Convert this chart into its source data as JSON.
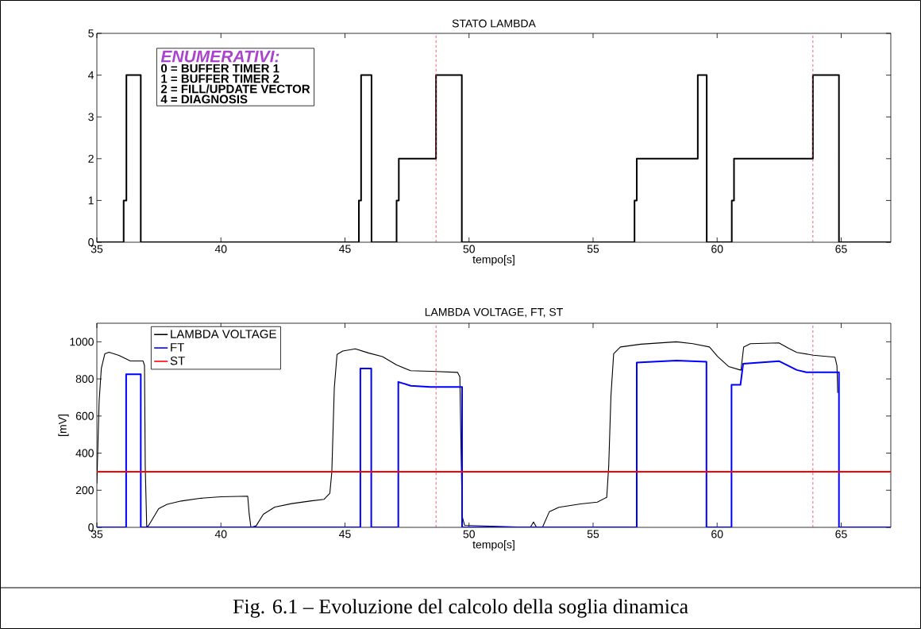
{
  "chart_data": [
    {
      "type": "step",
      "title": "STATO LAMBDA",
      "xlabel": "tempo[s]",
      "xlim": [
        35,
        67
      ],
      "xticks": [
        35,
        40,
        45,
        50,
        55,
        60,
        65
      ],
      "ylim": [
        0,
        5
      ],
      "yticks": [
        0,
        1,
        2,
        3,
        4,
        5
      ],
      "grid": false,
      "legend": false,
      "x": [
        35,
        36.08,
        36.19,
        36.77,
        45.56,
        45.65,
        46.07,
        47.08,
        47.17,
        48.67,
        49.71,
        56.67,
        56.76,
        59.22,
        59.58,
        60.59,
        60.68,
        63.86,
        64.91,
        67
      ],
      "series": [
        {
          "color": "#000000",
          "values": [
            0,
            1,
            4,
            0,
            1,
            4,
            0,
            1,
            2,
            4,
            0,
            1,
            2,
            4,
            0,
            1,
            2,
            4,
            0,
            0
          ]
        }
      ],
      "ref_lines": [
        {
          "axis": "x",
          "value": 48.67,
          "color": "#e8334a",
          "line_style": "dashed"
        },
        {
          "axis": "x",
          "value": 63.86,
          "color": "#e8334a",
          "line_style": "dashed"
        }
      ],
      "annotations": [
        "ENUMERATIVI:",
        "0 = BUFFER TIMER 1",
        "1 = BUFFER TIMER 2",
        "2 = FILL/UPDATE VECTOR",
        "4 = DIAGNOSIS"
      ]
    },
    {
      "type": "line",
      "title": "LAMBDA VOLTAGE, FT, ST",
      "xlabel": "tempo[s]",
      "ylabel": "[mV]",
      "xlim": [
        35,
        67
      ],
      "xticks": [
        35,
        40,
        45,
        50,
        55,
        60,
        65
      ],
      "ylim": [
        0,
        1100
      ],
      "yticks": [
        0,
        200,
        400,
        600,
        800,
        1000
      ],
      "grid": false,
      "legend": "top left",
      "series": [
        {
          "name": "LAMBDA VOLTAGE",
          "color": "#000000",
          "x": [
            35.0,
            35.09,
            35.18,
            35.32,
            35.49,
            35.89,
            36.35,
            36.86,
            36.92,
            36.95,
            37.01,
            37.09,
            37.49,
            37.83,
            38.4,
            39.2,
            40.0,
            41.08,
            41.14,
            41.21,
            41.42,
            41.71,
            42.17,
            42.85,
            43.65,
            44.16,
            44.39,
            44.47,
            44.57,
            44.68,
            44.91,
            45.42,
            45.94,
            46.51,
            47.08,
            47.65,
            48.45,
            49.54,
            49.63,
            49.68,
            49.73,
            49.82,
            52.47,
            52.6,
            52.72,
            52.96,
            53.24,
            53.62,
            54.5,
            55.17,
            55.55,
            55.63,
            55.72,
            55.83,
            56.1,
            56.93,
            58.36,
            59.02,
            59.69,
            60.02,
            60.46,
            60.96,
            61.07,
            61.34,
            62.49,
            62.88,
            63.21,
            63.87,
            64.75,
            64.83,
            64.86
          ],
          "values": [
            237,
            675,
            857,
            935,
            944,
            927,
            897,
            897,
            872,
            328,
            0,
            11,
            101,
            124,
            142,
            157,
            165,
            168,
            71,
            0,
            8,
            71,
            109,
            128,
            143,
            151,
            184,
            298,
            751,
            932,
            950,
            962,
            940,
            920,
            875,
            844,
            841,
            835,
            811,
            403,
            56,
            11,
            0,
            29,
            0,
            0,
            85,
            108,
            126,
            136,
            162,
            330,
            709,
            936,
            972,
            987,
            1000,
            990,
            972,
            921,
            867,
            847,
            972,
            990,
            994,
            965,
            943,
            928,
            917,
            870,
            724
          ]
        },
        {
          "name": "FT",
          "color": "#0000ff",
          "x": [
            35,
            36.18,
            36.18,
            36.77,
            36.77,
            45.62,
            45.62,
            46.06,
            46.06,
            47.15,
            47.15,
            47.65,
            48.45,
            49.72,
            49.72,
            56.76,
            56.76,
            58.36,
            59.57,
            59.57,
            60.58,
            60.58,
            60.94,
            61.05,
            62.49,
            63.21,
            63.6,
            64.91,
            64.91,
            67
          ],
          "values": [
            0,
            0,
            825,
            825,
            0,
            0,
            856,
            856,
            0,
            0,
            784,
            763,
            757,
            757,
            0,
            0,
            888,
            899,
            892,
            0,
            0,
            768,
            768,
            882,
            896,
            848,
            836,
            836,
            0,
            0
          ]
        },
        {
          "name": "ST",
          "color": "#ff0000",
          "x": [
            35,
            67
          ],
          "values": [
            300,
            300
          ]
        }
      ],
      "ref_lines": [
        {
          "axis": "x",
          "value": 48.67,
          "color": "#e8334a",
          "line_style": "dashed"
        },
        {
          "axis": "x",
          "value": 63.86,
          "color": "#e8334a",
          "line_style": "dashed"
        }
      ],
      "annotations": [
        "Fig. 6.1 –  Evoluzione del calcolo della soglia dinamica"
      ]
    }
  ]
}
